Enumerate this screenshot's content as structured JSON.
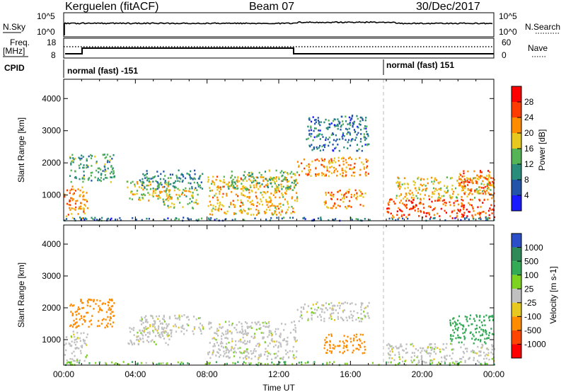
{
  "header": {
    "site": "Kerguelen (fitACF)",
    "beam": "Beam 07",
    "date": "30/Dec/2017"
  },
  "side_labels": {
    "nsky": "N.Sky",
    "freq_top": "Freq.",
    "freq_unit": "[MHz]",
    "cpid": "CPID",
    "nsearch": "N.Search",
    "nave": "Nave"
  },
  "top_panels": {
    "noise_ticks_left": [
      "10^5",
      "10^0"
    ],
    "noise_ticks_right": [
      "10^5",
      "10^0"
    ],
    "freq_ticks_left": [
      "18",
      "8"
    ],
    "nave_ticks_right": [
      "60",
      "0"
    ]
  },
  "cpid_labels": [
    "normal (fast) -151",
    "normal (fast) 151"
  ],
  "chart_data": [
    {
      "type": "heatmap",
      "name": "power",
      "ylabel": "Slant Range [km]",
      "yticks": [
        "1000",
        "2000",
        "3000",
        "4000"
      ],
      "ylim": [
        200,
        4600
      ],
      "colorbar_label": "Power [dB]",
      "colorbar_ticks": [
        "4",
        "8",
        "12",
        "16",
        "20",
        "24",
        "28"
      ],
      "colors": [
        "#1a1aff",
        "#2255aa",
        "#2a8c7a",
        "#55b455",
        "#e6c81e",
        "#ff8c00",
        "#ff3c00",
        "#ff0000"
      ],
      "regions": [
        {
          "x": [
            0.0,
            1.3
          ],
          "y": [
            300,
            1300
          ],
          "value": 22
        },
        {
          "x": [
            0.3,
            2.8
          ],
          "y": [
            1400,
            2300
          ],
          "value": 12
        },
        {
          "x": [
            3.5,
            6.0
          ],
          "y": [
            850,
            1450
          ],
          "value": 18
        },
        {
          "x": [
            4.2,
            7.8
          ],
          "y": [
            1200,
            1800
          ],
          "value": 10
        },
        {
          "x": [
            5.5,
            7.5
          ],
          "y": [
            600,
            1200
          ],
          "value": 16
        },
        {
          "x": [
            8.0,
            13.0
          ],
          "y": [
            400,
            1600
          ],
          "value": 20
        },
        {
          "x": [
            9.0,
            13.0
          ],
          "y": [
            1200,
            1800
          ],
          "value": 14
        },
        {
          "x": [
            13.0,
            17.0
          ],
          "y": [
            1600,
            2200
          ],
          "value": 22
        },
        {
          "x": [
            14.5,
            16.8
          ],
          "y": [
            600,
            1200
          ],
          "value": 22
        },
        {
          "x": [
            13.5,
            17.0
          ],
          "y": [
            2400,
            3500
          ],
          "value": 8
        },
        {
          "x": [
            18.0,
            24.0
          ],
          "y": [
            300,
            900
          ],
          "value": 26
        },
        {
          "x": [
            18.5,
            24.0
          ],
          "y": [
            900,
            1600
          ],
          "value": 18
        },
        {
          "x": [
            22.0,
            24.0
          ],
          "y": [
            1000,
            1800
          ],
          "value": 24
        },
        {
          "x": [
            0.0,
            24.0
          ],
          "y": [
            230,
            330
          ],
          "value": 8
        }
      ]
    },
    {
      "type": "heatmap",
      "name": "velocity",
      "ylabel": "Slant Range [km]",
      "yticks": [
        "1000",
        "2000",
        "3000",
        "4000"
      ],
      "ylim": [
        200,
        4600
      ],
      "xlabel": "Time UT",
      "xticks": [
        "00:00",
        "04:00",
        "08:00",
        "12:00",
        "16:00",
        "20:00",
        "00:00"
      ],
      "xlim": [
        0,
        24
      ],
      "colorbar_label": "Velocity [m s-1]",
      "colorbar_ticks": [
        "1000",
        "500",
        "100",
        "25",
        "-25",
        "-100",
        "-500",
        "-1000"
      ],
      "colors": [
        "#2a4fc8",
        "#2e8b57",
        "#33aa55",
        "#7ed321",
        "#c0c0c0",
        "#e6c81e",
        "#ff8c00",
        "#ff4500",
        "#ff0000"
      ],
      "regions": [
        {
          "x": [
            0.0,
            1.3
          ],
          "y": [
            300,
            1300
          ],
          "value": 0
        },
        {
          "x": [
            0.3,
            2.8
          ],
          "y": [
            1400,
            2300
          ],
          "value": -100
        },
        {
          "x": [
            3.5,
            6.0
          ],
          "y": [
            850,
            1450
          ],
          "value": 0
        },
        {
          "x": [
            4.2,
            7.8
          ],
          "y": [
            1200,
            1800
          ],
          "value": 0
        },
        {
          "x": [
            8.0,
            13.0
          ],
          "y": [
            400,
            1600
          ],
          "value": 0
        },
        {
          "x": [
            13.0,
            17.0
          ],
          "y": [
            1600,
            2200
          ],
          "value": 0
        },
        {
          "x": [
            14.5,
            16.8
          ],
          "y": [
            600,
            1200
          ],
          "value": -100
        },
        {
          "x": [
            18.0,
            24.0
          ],
          "y": [
            300,
            900
          ],
          "value": 0
        },
        {
          "x": [
            21.5,
            24.0
          ],
          "y": [
            900,
            1800
          ],
          "value": 200
        },
        {
          "x": [
            0.0,
            24.0
          ],
          "y": [
            230,
            330
          ],
          "value": 50
        }
      ]
    }
  ]
}
